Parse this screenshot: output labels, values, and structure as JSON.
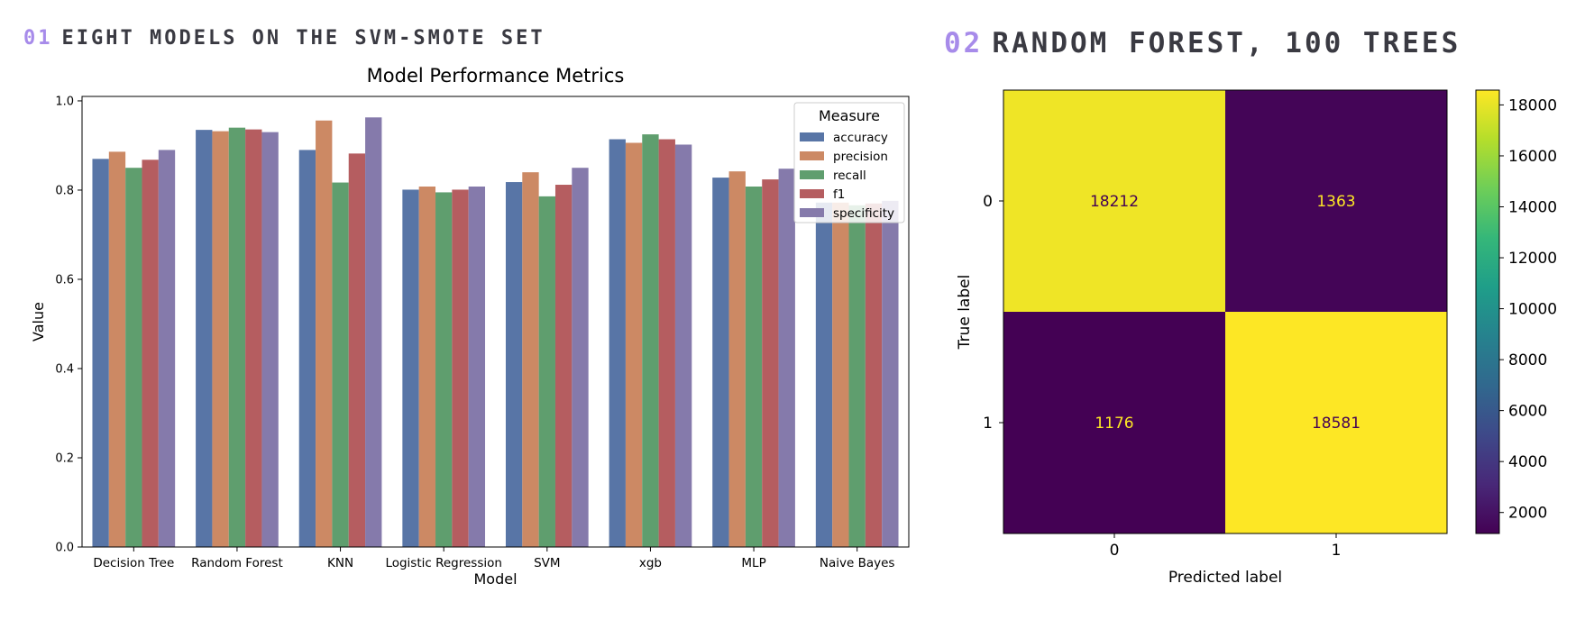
{
  "panel1": {
    "number": "01",
    "heading": "EIGHT MODELS ON THE SVM-SMOTE SET"
  },
  "panel2": {
    "number": "02",
    "heading": "RANDOM FOREST, 100 TREES"
  },
  "chart_data": [
    {
      "type": "bar",
      "title": "Model Performance Metrics",
      "xlabel": "Model",
      "ylabel": "Value",
      "ylim": [
        0,
        1.01
      ],
      "yticks": [
        0.0,
        0.2,
        0.4,
        0.6,
        0.8,
        1.0
      ],
      "grid": false,
      "legend": {
        "title": "Measure",
        "placement": "top-right"
      },
      "categories": [
        "Decision Tree",
        "Random Forest",
        "KNN",
        "Logistic Regression",
        "SVM",
        "xgb",
        "MLP",
        "Naive Bayes"
      ],
      "series": [
        {
          "name": "accuracy",
          "color": "#5875a6",
          "values": [
            0.87,
            0.935,
            0.89,
            0.801,
            0.818,
            0.914,
            0.828,
            0.772
          ]
        },
        {
          "name": "precision",
          "color": "#cc8964",
          "values": [
            0.886,
            0.932,
            0.956,
            0.808,
            0.84,
            0.906,
            0.842,
            0.772
          ]
        },
        {
          "name": "recall",
          "color": "#5f9e6e",
          "values": [
            0.85,
            0.94,
            0.817,
            0.795,
            0.786,
            0.925,
            0.808,
            0.766
          ]
        },
        {
          "name": "f1",
          "color": "#b55d60",
          "values": [
            0.868,
            0.936,
            0.882,
            0.801,
            0.812,
            0.914,
            0.824,
            0.77
          ]
        },
        {
          "name": "specificity",
          "color": "#857aab",
          "values": [
            0.89,
            0.93,
            0.963,
            0.808,
            0.85,
            0.902,
            0.848,
            0.776
          ]
        }
      ]
    },
    {
      "type": "heatmap",
      "xlabel": "Predicted label",
      "ylabel": "True label",
      "xticks": [
        "0",
        "1"
      ],
      "yticks": [
        "0",
        "1"
      ],
      "matrix": [
        [
          18212,
          1363
        ],
        [
          1176,
          18581
        ]
      ],
      "colorbar": {
        "min": 1176,
        "max": 18581,
        "ticks": [
          2000,
          4000,
          6000,
          8000,
          10000,
          12000,
          14000,
          16000,
          18000
        ]
      },
      "colormap": "viridis"
    }
  ]
}
